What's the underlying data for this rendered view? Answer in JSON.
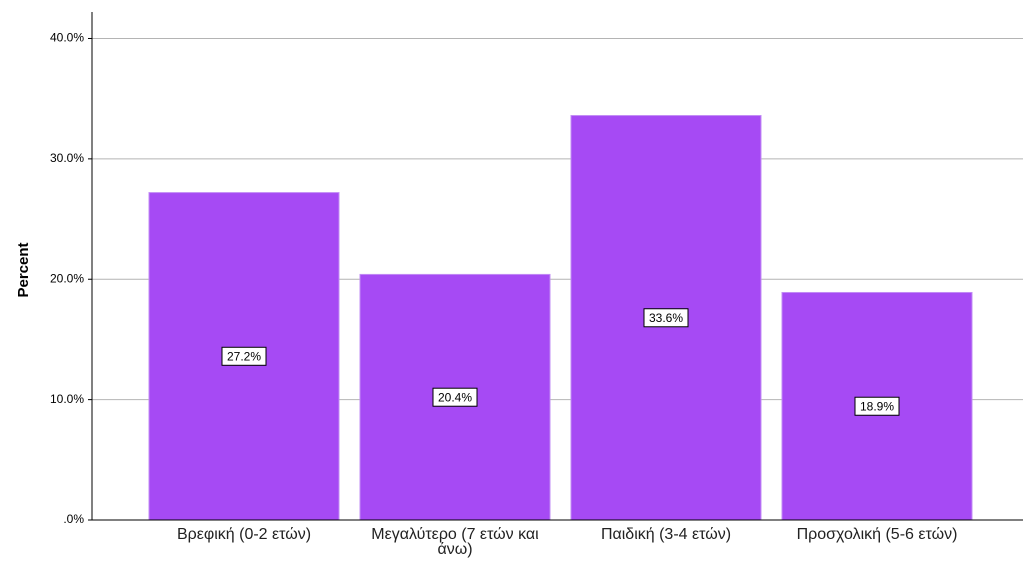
{
  "chart_data": {
    "type": "bar",
    "y_label": "Percent",
    "categories": [
      "Βρεφική (0-2 ετών)",
      "Μεγαλύτερο (7 ετών και άνω)",
      "Παιδική (3-4 ετών)",
      "Προσχολική (5-6 ετών)"
    ],
    "values": [
      27.2,
      20.4,
      33.6,
      18.9
    ],
    "value_labels": [
      "27.2%",
      "20.4%",
      "33.6%",
      "18.9%"
    ],
    "color": "#a64af4",
    "ylim": [
      0,
      42.2
    ],
    "yticks": [
      {
        "value": 0,
        "label": ".0%"
      },
      {
        "value": 10,
        "label": "10.0%"
      },
      {
        "value": 20,
        "label": "20.0%"
      },
      {
        "value": 30,
        "label": "30.0%"
      },
      {
        "value": 40,
        "label": "40.0%"
      }
    ],
    "grid": true
  }
}
